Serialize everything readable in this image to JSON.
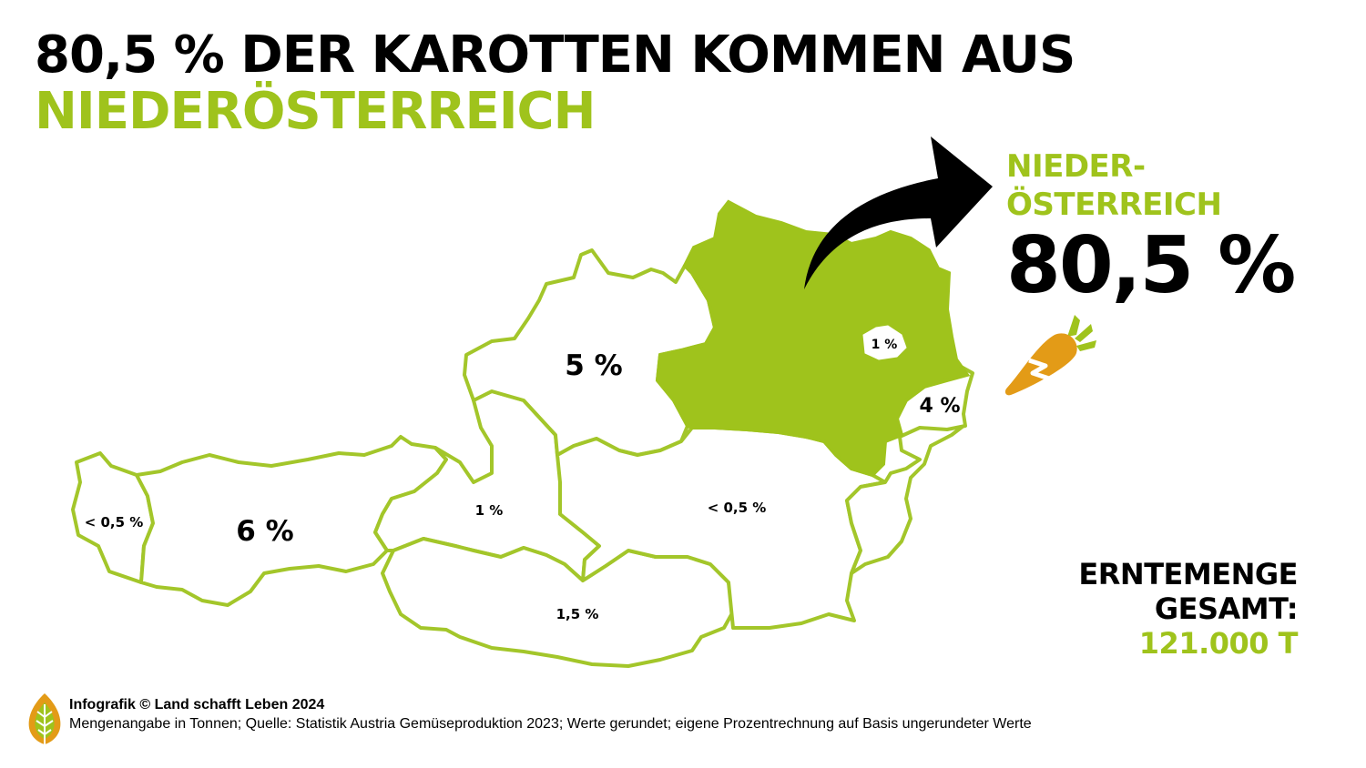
{
  "colors": {
    "accent": "#9fc31c",
    "carrot": "#e39b17",
    "carrot_leaf": "#9fc31c",
    "region_outline": "#a3c62a"
  },
  "header": {
    "title_line1": "80,5 % DER KAROTTEN KOMMEN AUS",
    "title_line2": "NIEDERÖSTERREICH"
  },
  "highlight": {
    "name_line1": "NIEDER-",
    "name_line2": "ÖSTERREICH",
    "share": "80,5 %",
    "arrow_icon": "curved-arrow-icon",
    "carrot_icon": "carrot-icon"
  },
  "map": {
    "regions": [
      {
        "name": "Vorarlberg",
        "label": "< 0,5 %"
      },
      {
        "name": "Tirol",
        "label": "6 %"
      },
      {
        "name": "Salzburg",
        "label": "1 %"
      },
      {
        "name": "Kärnten",
        "label": "1,5 %"
      },
      {
        "name": "Oberösterreich",
        "label": "5 %"
      },
      {
        "name": "Steiermark",
        "label": "< 0,5 %"
      },
      {
        "name": "Niederösterreich",
        "label": "",
        "highlighted": true
      },
      {
        "name": "Wien",
        "label": "1 %"
      },
      {
        "name": "Burgenland",
        "label": "4 %"
      }
    ]
  },
  "total": {
    "label_line1": "ERNTEMENGE",
    "label_line2": "GESAMT:",
    "amount": "121.000 T"
  },
  "footer": {
    "logo_icon": "leaf-logo-icon",
    "credit": "Infografik © Land schafft Leben 2024",
    "source": "Mengenangabe in Tonnen; Quelle: Statistik Austria Gemüseproduktion 2023; Werte gerundet; eigene Prozentrechnung auf Basis ungerundeter Werte"
  }
}
